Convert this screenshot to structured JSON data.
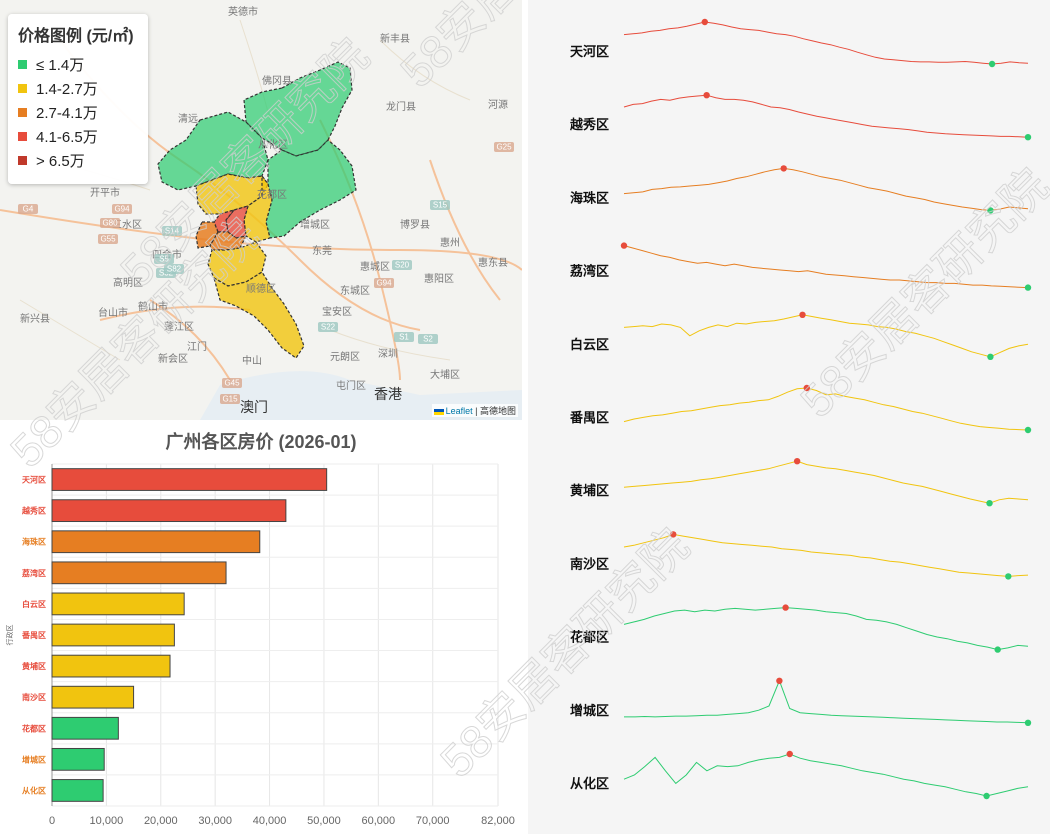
{
  "legend": {
    "title": "价格图例 (元/㎡)",
    "items": [
      {
        "label": "≤ 1.4万",
        "color": "#2ecc71"
      },
      {
        "label": "1.4-2.7万",
        "color": "#f1c40f"
      },
      {
        "label": "2.7-4.1万",
        "color": "#e67e22"
      },
      {
        "label": "4.1-6.5万",
        "color": "#e74c3c"
      },
      {
        "label": "> 6.5万",
        "color": "#c0392b"
      }
    ]
  },
  "map": {
    "place_labels": [
      "英德市",
      "新丰县",
      "佛冈县",
      "清远",
      "从化区",
      "龙门县",
      "河源",
      "花都区",
      "三水区",
      "高明区",
      "鹤山市",
      "新会区",
      "江门",
      "中山",
      "东莞",
      "惠州",
      "惠东县",
      "惠阳区",
      "博罗县",
      "增城区",
      "深圳",
      "宝安区",
      "东城区",
      "大埔区",
      "香港",
      "澳门",
      "蓬江区",
      "顺德区",
      "开平市",
      "台山市",
      "新兴县",
      "四会市",
      "屯门区",
      "元朗区",
      "惠城区"
    ],
    "road_labels": [
      "G4",
      "G94",
      "S14",
      "G25",
      "G55",
      "G80",
      "S5",
      "S32",
      "G94",
      "S20",
      "S82",
      "S15",
      "G45",
      "G15",
      "S22",
      "S1",
      "S2"
    ],
    "attribution_leaflet": "Leaflet",
    "attribution_rest": "| 高德地图"
  },
  "watermark": "58安居客研究院",
  "chart_data": [
    {
      "type": "bar",
      "orientation": "horizontal",
      "title": "广州各区房价 (2026-01)",
      "ylabel": "行政区",
      "xlabel": "",
      "categories": [
        "天河区",
        "越秀区",
        "海珠区",
        "荔湾区",
        "白云区",
        "番禺区",
        "黄埔区",
        "南沙区",
        "花都区",
        "增城区",
        "从化区"
      ],
      "values": [
        50500,
        43000,
        38200,
        32000,
        24300,
        22500,
        21700,
        15000,
        12200,
        9600,
        9400
      ],
      "colors": [
        "#e74c3c",
        "#e74c3c",
        "#e67e22",
        "#e67e22",
        "#f1c40f",
        "#f1c40f",
        "#f1c40f",
        "#f1c40f",
        "#2ecc71",
        "#2ecc71",
        "#2ecc71"
      ],
      "label_colors": [
        "#e74c3c",
        "#e74c3c",
        "#e67e22",
        "#e74c3c",
        "#e74c3c",
        "#e74c3c",
        "#e74c3c",
        "#e74c3c",
        "#e74c3c",
        "#e67e22",
        "#e67e22"
      ],
      "xlim": [
        0,
        82000
      ],
      "xticks": [
        0,
        10000,
        20000,
        30000,
        40000,
        50000,
        60000,
        70000,
        82000
      ],
      "xtick_labels": [
        "0",
        "10,000",
        "20,000",
        "30,000",
        "40,000",
        "50,000",
        "60,000",
        "70,000",
        "82,000"
      ]
    },
    {
      "type": "line",
      "title": "",
      "note": "sparklines of price trend per district; values normalized 0-1 (1 = series max)",
      "series": [
        {
          "name": "天河区",
          "color": "#e74c3c",
          "values": [
            0.7,
            0.72,
            0.74,
            0.78,
            0.8,
            0.84,
            0.86,
            0.9,
            0.95,
            1.0,
            0.97,
            0.93,
            0.88,
            0.84,
            0.82,
            0.8,
            0.76,
            0.72,
            0.7,
            0.66,
            0.6,
            0.55,
            0.5,
            0.46,
            0.4,
            0.35,
            0.28,
            0.22,
            0.16,
            0.12,
            0.1,
            0.08,
            0.06,
            0.05,
            0.05,
            0.04,
            0.04,
            0.05,
            0.06,
            0.04,
            0.02,
            0.0,
            0.02,
            0.05,
            0.03,
            0.02
          ],
          "max_idx": 9,
          "min_idx": 41
        },
        {
          "name": "越秀区",
          "color": "#e74c3c",
          "values": [
            0.72,
            0.78,
            0.8,
            0.86,
            0.9,
            0.88,
            0.93,
            0.96,
            0.98,
            1.0,
            0.94,
            0.9,
            0.9,
            0.88,
            0.84,
            0.78,
            0.72,
            0.7,
            0.66,
            0.6,
            0.55,
            0.5,
            0.46,
            0.42,
            0.38,
            0.34,
            0.3,
            0.26,
            0.24,
            0.22,
            0.2,
            0.18,
            0.15,
            0.12,
            0.1,
            0.08,
            0.07,
            0.06,
            0.05,
            0.04,
            0.03,
            0.02,
            0.02,
            0.01,
            0.0
          ],
          "max_idx": 9,
          "min_idx": 44
        },
        {
          "name": "海珠区",
          "color": "#e67e22",
          "values": [
            0.4,
            0.42,
            0.44,
            0.5,
            0.52,
            0.55,
            0.56,
            0.58,
            0.6,
            0.62,
            0.66,
            0.7,
            0.76,
            0.8,
            0.86,
            0.92,
            0.97,
            1.0,
            0.97,
            0.92,
            0.86,
            0.8,
            0.76,
            0.72,
            0.66,
            0.6,
            0.54,
            0.5,
            0.46,
            0.4,
            0.34,
            0.3,
            0.26,
            0.2,
            0.16,
            0.12,
            0.08,
            0.05,
            0.02,
            0.0,
            0.03,
            0.08,
            0.06,
            0.04
          ],
          "max_idx": 17,
          "min_idx": 39
        },
        {
          "name": "荔湾区",
          "color": "#e67e22",
          "values": [
            1.0,
            0.94,
            0.88,
            0.82,
            0.76,
            0.72,
            0.66,
            0.62,
            0.58,
            0.6,
            0.56,
            0.52,
            0.56,
            0.52,
            0.48,
            0.46,
            0.44,
            0.42,
            0.4,
            0.38,
            0.4,
            0.36,
            0.32,
            0.3,
            0.28,
            0.26,
            0.24,
            0.22,
            0.2,
            0.18,
            0.18,
            0.16,
            0.14,
            0.12,
            0.12,
            0.1,
            0.1,
            0.08,
            0.06,
            0.06,
            0.04,
            0.03,
            0.02,
            0.01,
            0.0
          ],
          "max_idx": 0,
          "min_idx": 44
        },
        {
          "name": "白云区",
          "color": "#f1c40f",
          "values": [
            0.7,
            0.72,
            0.74,
            0.72,
            0.78,
            0.76,
            0.7,
            0.5,
            0.62,
            0.7,
            0.76,
            0.72,
            0.8,
            0.78,
            0.82,
            0.84,
            0.86,
            0.9,
            0.95,
            1.0,
            0.96,
            0.92,
            0.88,
            0.84,
            0.8,
            0.78,
            0.76,
            0.72,
            0.7,
            0.66,
            0.6,
            0.56,
            0.5,
            0.44,
            0.36,
            0.28,
            0.2,
            0.12,
            0.06,
            0.0,
            0.1,
            0.2,
            0.26,
            0.3
          ],
          "max_idx": 19,
          "min_idx": 39
        },
        {
          "name": "番禺区",
          "color": "#f1c40f",
          "values": [
            0.2,
            0.26,
            0.3,
            0.34,
            0.36,
            0.4,
            0.44,
            0.46,
            0.5,
            0.54,
            0.58,
            0.6,
            0.64,
            0.66,
            0.7,
            0.72,
            0.8,
            0.9,
            0.98,
            1.0,
            0.94,
            0.84,
            0.86,
            0.8,
            0.76,
            0.72,
            0.66,
            0.6,
            0.56,
            0.5,
            0.44,
            0.4,
            0.34,
            0.28,
            0.22,
            0.16,
            0.12,
            0.08,
            0.06,
            0.04,
            0.02,
            0.01,
            0.0
          ],
          "max_idx": 19,
          "min_idx": 42
        },
        {
          "name": "黄埔区",
          "color": "#f1c40f",
          "values": [
            0.38,
            0.4,
            0.42,
            0.44,
            0.46,
            0.48,
            0.5,
            0.52,
            0.56,
            0.58,
            0.62,
            0.66,
            0.7,
            0.74,
            0.78,
            0.82,
            0.88,
            0.94,
            1.0,
            0.92,
            0.88,
            0.84,
            0.82,
            0.78,
            0.74,
            0.7,
            0.66,
            0.6,
            0.54,
            0.48,
            0.44,
            0.4,
            0.34,
            0.28,
            0.22,
            0.16,
            0.1,
            0.05,
            0.0,
            0.08,
            0.12,
            0.1,
            0.08
          ],
          "max_idx": 18,
          "min_idx": 38
        },
        {
          "name": "南沙区",
          "color": "#f1c40f",
          "values": [
            0.7,
            0.74,
            0.8,
            0.86,
            0.92,
            1.0,
            0.96,
            0.92,
            0.88,
            0.84,
            0.8,
            0.78,
            0.76,
            0.74,
            0.72,
            0.7,
            0.66,
            0.64,
            0.62,
            0.58,
            0.56,
            0.54,
            0.52,
            0.5,
            0.46,
            0.44,
            0.4,
            0.36,
            0.34,
            0.3,
            0.26,
            0.22,
            0.18,
            0.14,
            0.1,
            0.08,
            0.06,
            0.04,
            0.02,
            0.0,
            0.02,
            0.03
          ],
          "max_idx": 5,
          "min_idx": 39
        },
        {
          "name": "花都区",
          "color": "#2ecc71",
          "values": [
            0.6,
            0.66,
            0.72,
            0.8,
            0.86,
            0.92,
            0.94,
            0.9,
            0.94,
            0.92,
            0.96,
            0.98,
            0.96,
            0.94,
            0.96,
            0.98,
            1.0,
            0.98,
            0.96,
            0.94,
            0.9,
            0.88,
            0.86,
            0.8,
            0.72,
            0.7,
            0.66,
            0.6,
            0.52,
            0.44,
            0.36,
            0.3,
            0.26,
            0.2,
            0.16,
            0.1,
            0.06,
            0.0,
            0.04,
            0.1,
            0.08
          ],
          "max_idx": 16,
          "min_idx": 37
        },
        {
          "name": "增城区",
          "color": "#2ecc71",
          "values": [
            0.14,
            0.14,
            0.15,
            0.14,
            0.15,
            0.16,
            0.16,
            0.17,
            0.18,
            0.18,
            0.2,
            0.22,
            0.24,
            0.3,
            0.4,
            1.0,
            0.34,
            0.24,
            0.22,
            0.2,
            0.18,
            0.17,
            0.16,
            0.15,
            0.14,
            0.13,
            0.12,
            0.11,
            0.1,
            0.09,
            0.08,
            0.07,
            0.06,
            0.05,
            0.04,
            0.03,
            0.02,
            0.02,
            0.01,
            0.0
          ],
          "max_idx": 15,
          "min_idx": 39
        },
        {
          "name": "从化区",
          "color": "#2ecc71",
          "values": [
            0.4,
            0.5,
            0.7,
            0.92,
            0.6,
            0.3,
            0.5,
            0.8,
            0.6,
            0.72,
            0.7,
            0.72,
            0.8,
            0.86,
            0.9,
            0.92,
            1.0,
            0.9,
            0.84,
            0.8,
            0.76,
            0.72,
            0.66,
            0.6,
            0.56,
            0.52,
            0.46,
            0.4,
            0.36,
            0.3,
            0.26,
            0.22,
            0.16,
            0.1,
            0.06,
            0.0,
            0.06,
            0.12,
            0.18,
            0.22
          ],
          "max_idx": 16,
          "min_idx": 35
        }
      ],
      "marker_max_color": "#e74c3c",
      "marker_min_color": "#2ecc71"
    }
  ]
}
